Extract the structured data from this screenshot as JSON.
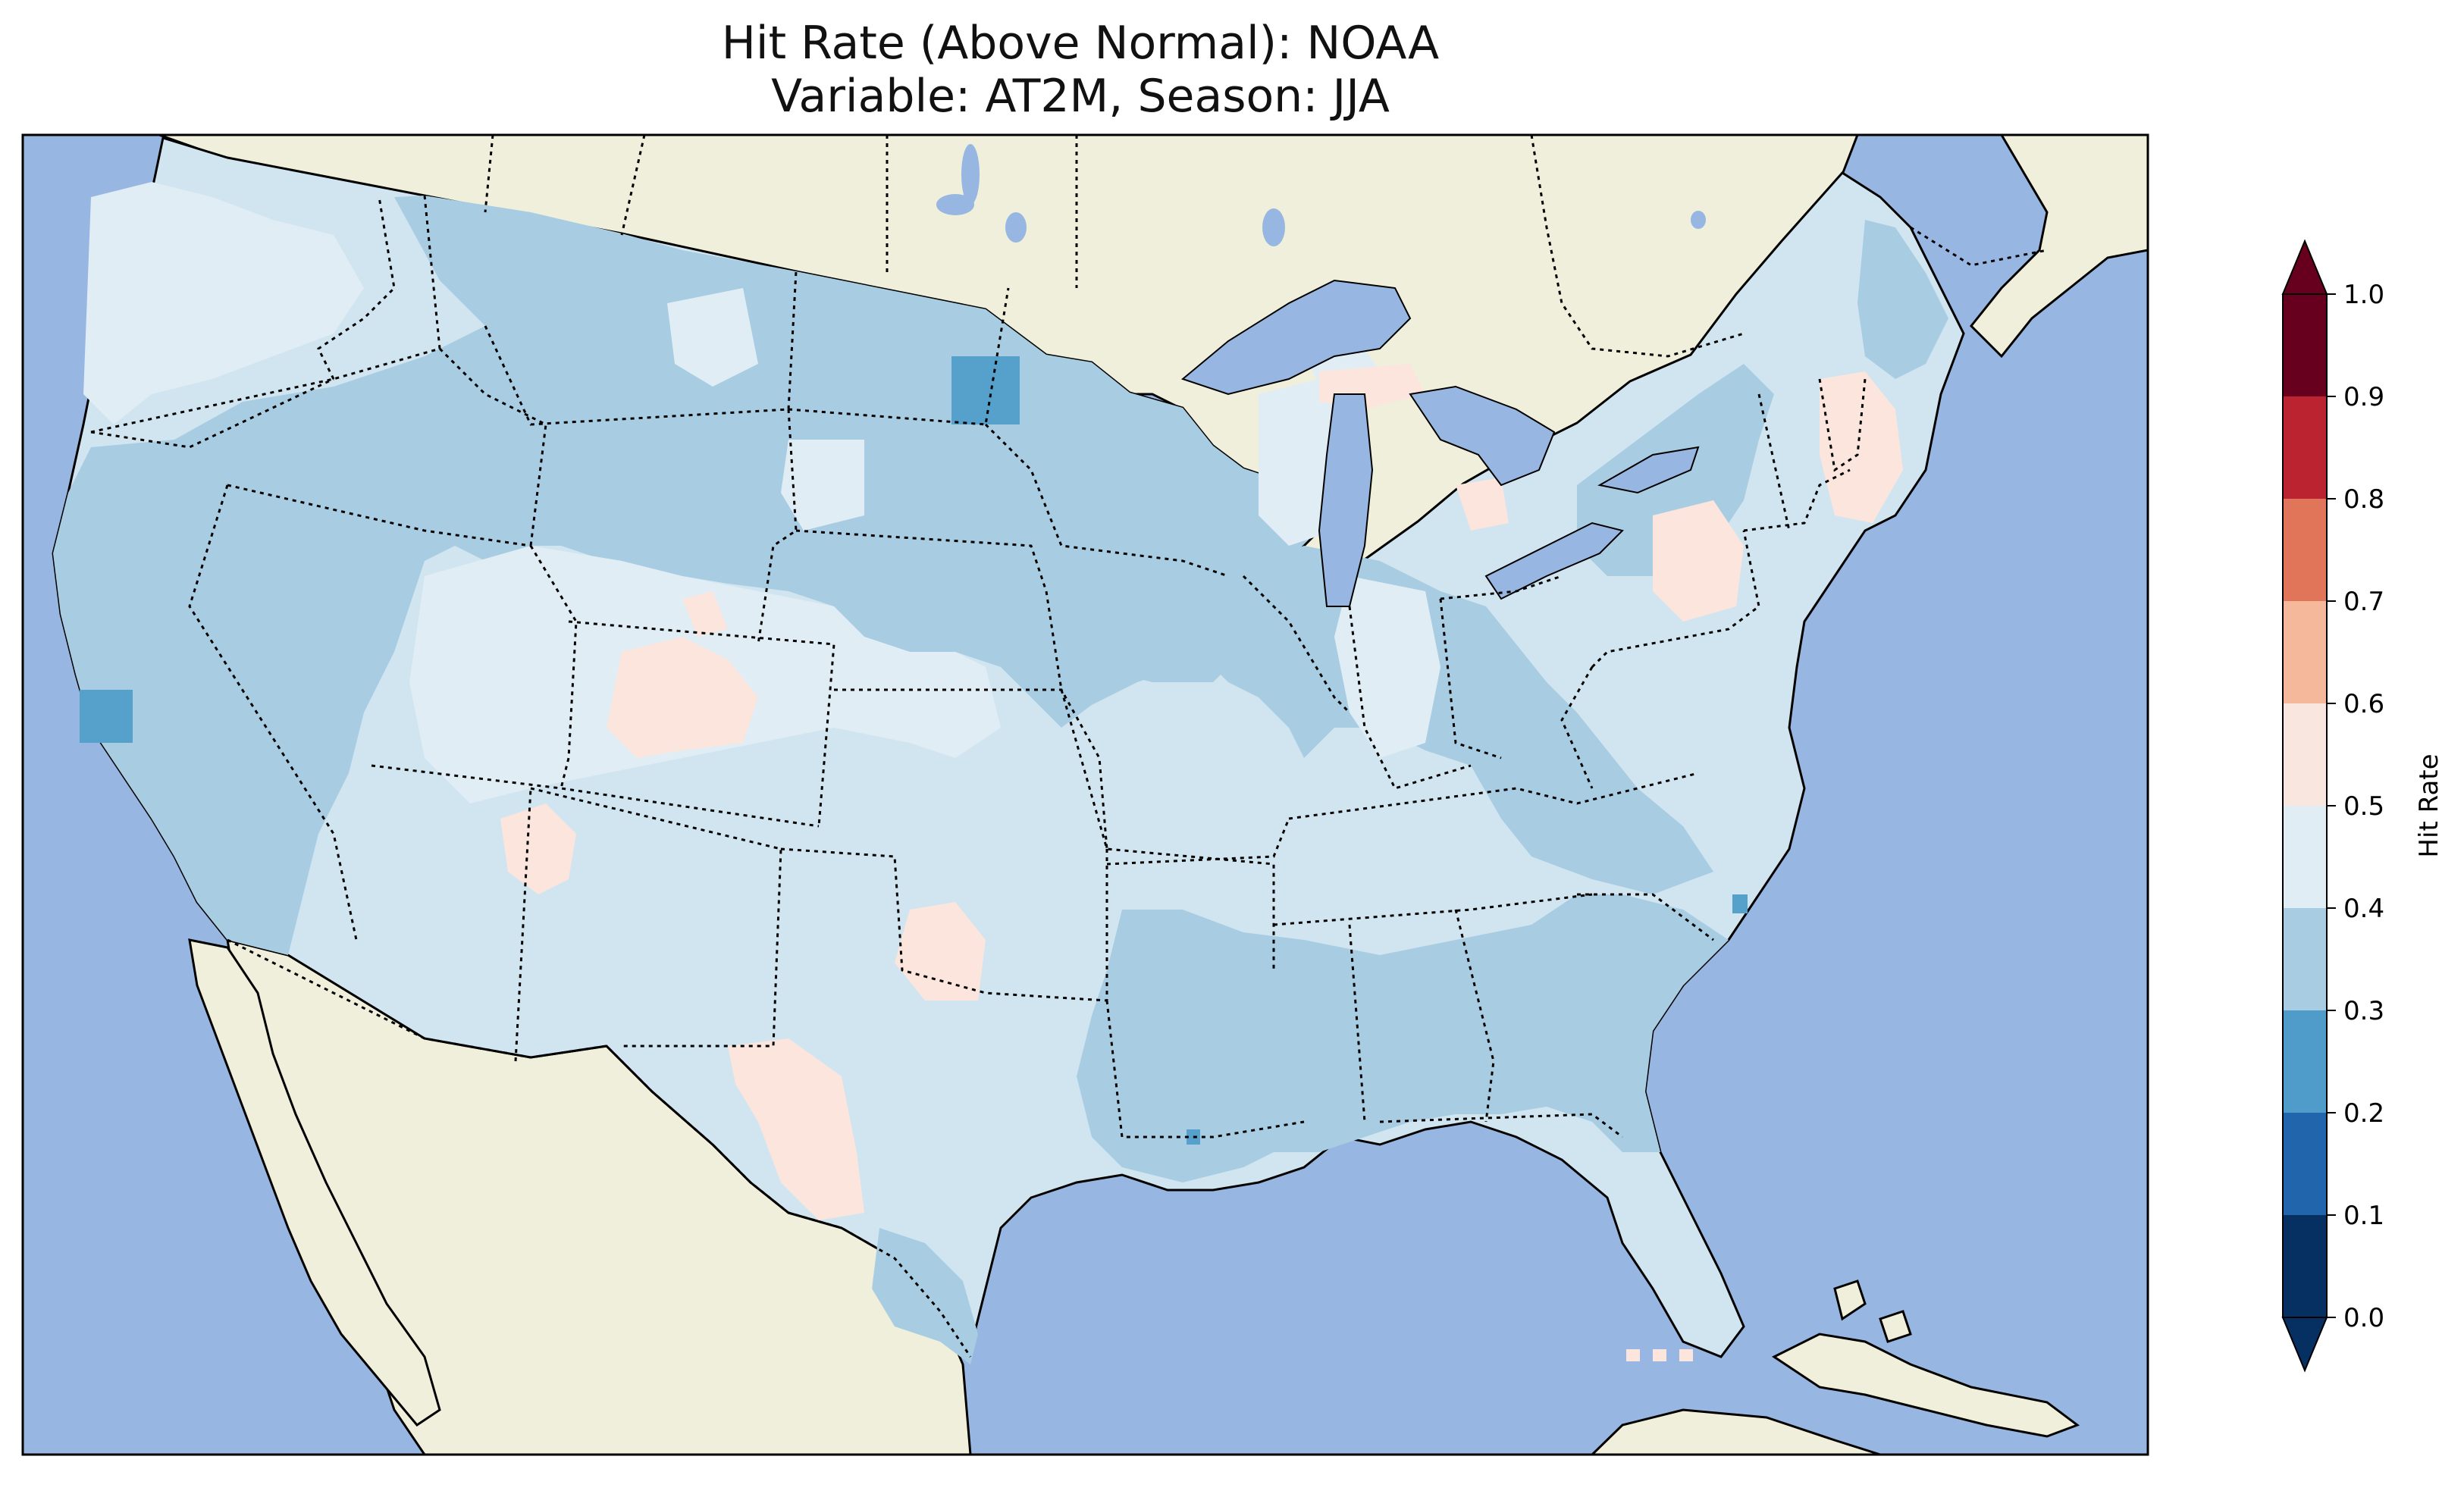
{
  "title": {
    "line1": "Hit Rate (Above Normal): NOAA",
    "line2": "Variable: AT2M, Season: JJA"
  },
  "colorbar": {
    "label": "Hit Rate",
    "ticks": [
      "0.0",
      "0.1",
      "0.2",
      "0.3",
      "0.4",
      "0.5",
      "0.6",
      "0.7",
      "0.8",
      "0.9",
      "1.0"
    ],
    "colors": [
      "#053061",
      "#2166ac",
      "#4393c3",
      "#92c5de",
      "#d1e5f0",
      "#f7f7f7",
      "#fddbc7",
      "#f4a582",
      "#d6604d",
      "#b2182b",
      "#67001f"
    ],
    "extend": "both"
  },
  "map": {
    "ocean_color": "#97b6e1",
    "land_color": "#efefdb",
    "dominant_levels": {
      "west_coast_interior_plains": "0.3-0.4",
      "southwest_texas_midwest": "0.4-0.5",
      "colorado_texas_new_england_patches": "0.5-0.6",
      "isolated_cells": "0.2-0.3"
    }
  }
}
